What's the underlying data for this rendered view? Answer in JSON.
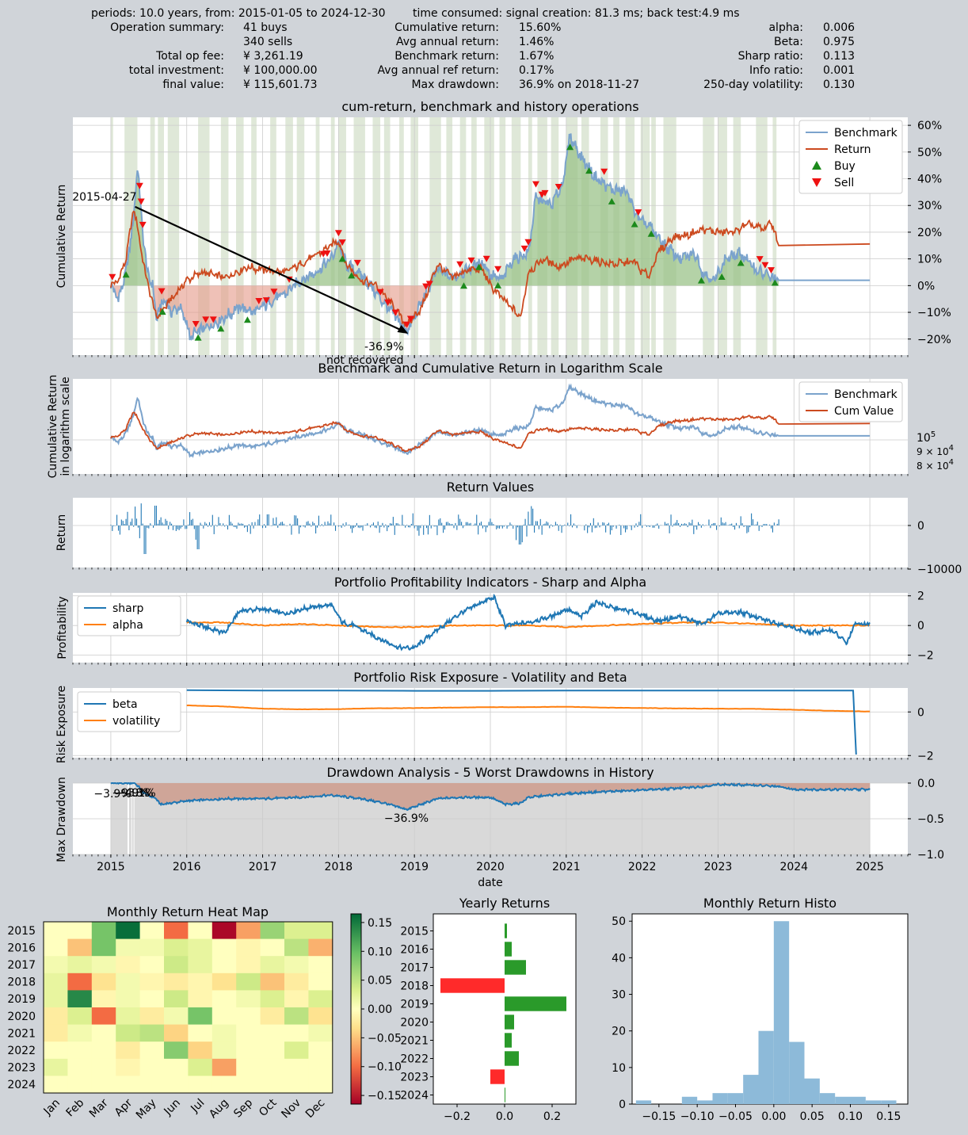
{
  "summary": {
    "header_left": "periods: 10.0 years, from: 2015-01-05 to 2024-12-30",
    "header_right": "time consumed:   signal creation: 81.3 ms;  back test:4.9 ms",
    "col1": [
      {
        "label": "Operation summary:",
        "value": "41     buys"
      },
      {
        "label": "",
        "value": "340     sells"
      },
      {
        "label": "Total op fee:",
        "value": "¥     3,261.19"
      },
      {
        "label": "total investment:",
        "value": "¥   100,000.00"
      },
      {
        "label": "final value:",
        "value": "¥   115,601.73"
      }
    ],
    "col2": [
      {
        "label": "Cumulative return:",
        "value": "15.60%"
      },
      {
        "label": "Avg annual return:",
        "value": "1.46%"
      },
      {
        "label": "Benchmark return:",
        "value": "1.67%"
      },
      {
        "label": "Avg annual ref return:",
        "value": "0.17%"
      },
      {
        "label": "Max drawdown:",
        "value": "36.9% on 2018-11-27"
      }
    ],
    "col3": [
      {
        "label": "alpha:",
        "value": "0.006"
      },
      {
        "label": "Beta:",
        "value": "0.975"
      },
      {
        "label": "Sharp ratio:",
        "value": "0.113"
      },
      {
        "label": "Info ratio:",
        "value": "0.001"
      },
      {
        "label": "250-day volatility:",
        "value": "0.130"
      }
    ]
  },
  "colors": {
    "benchmark": "#7ba3cc",
    "return": "#cc4a1f",
    "buy": "#1c8a1c",
    "sell": "#ee1111",
    "blue": "#1f77b4",
    "orange": "#ff7f0e",
    "green_fill": "#9bc38a",
    "red_fill": "#e6a090",
    "hold_band": "#dfe8d8",
    "grid": "#cccccc"
  },
  "chart_data": [
    {
      "type": "line",
      "title": "cum-return, benchmark and history operations",
      "xlabel": "",
      "ylabel": "Cumulative Return",
      "xlim": [
        2014.5,
        2025.5
      ],
      "ylim": [
        -26,
        63
      ],
      "yticks": [
        -20,
        -10,
        0,
        10,
        20,
        30,
        40,
        50,
        60
      ],
      "ytick_labels": [
        "−20%",
        "−10%",
        "0%",
        "10%",
        "20%",
        "30%",
        "40%",
        "50%",
        "60%"
      ],
      "legend": [
        "Benchmark",
        "Return",
        "Buy",
        "Sell"
      ],
      "legend_position": "top-right",
      "series": [
        {
          "name": "Benchmark",
          "x": [
            2015.0,
            2015.1,
            2015.2,
            2015.3,
            2015.35,
            2015.42,
            2015.48,
            2015.55,
            2015.6,
            2015.7,
            2015.8,
            2015.9,
            2016.0,
            2016.05,
            2016.1,
            2016.3,
            2016.5,
            2016.7,
            2016.9,
            2017.1,
            2017.3,
            2017.5,
            2017.7,
            2017.9,
            2018.0,
            2018.1,
            2018.3,
            2018.5,
            2018.7,
            2018.9,
            2019.0,
            2019.15,
            2019.3,
            2019.5,
            2019.7,
            2019.9,
            2020.0,
            2020.15,
            2020.3,
            2020.5,
            2020.6,
            2020.8,
            2020.95,
            2021.05,
            2021.2,
            2021.4,
            2021.6,
            2021.8,
            2021.95,
            2022.1,
            2022.3,
            2022.5,
            2022.7,
            2022.8,
            2022.95,
            2023.1,
            2023.3,
            2023.5,
            2023.7,
            2023.8,
            2024.0,
            2024.5,
            2025.0
          ],
          "y": [
            0,
            -5,
            5,
            25,
            45,
            20,
            5,
            0,
            -12,
            -5,
            -10,
            -8,
            -14,
            -20,
            -18,
            -15,
            -12,
            -8,
            -10,
            -6,
            -3,
            2,
            5,
            10,
            16,
            8,
            4,
            -3,
            -10,
            -17,
            -12,
            -3,
            6,
            3,
            6,
            9,
            4,
            2,
            10,
            12,
            33,
            30,
            38,
            56,
            48,
            40,
            36,
            35,
            25,
            22,
            15,
            10,
            12,
            5,
            2,
            10,
            12,
            6,
            3,
            2,
            2,
            2,
            2
          ]
        },
        {
          "name": "Return",
          "x": [
            2015.0,
            2015.1,
            2015.2,
            2015.3,
            2015.35,
            2015.45,
            2015.6,
            2015.8,
            2016.0,
            2016.2,
            2016.5,
            2016.8,
            2017.0,
            2017.3,
            2017.5,
            2017.8,
            2018.0,
            2018.1,
            2018.3,
            2018.5,
            2018.7,
            2018.9,
            2019.1,
            2019.3,
            2019.5,
            2019.7,
            2019.9,
            2020.0,
            2020.2,
            2020.4,
            2020.5,
            2020.7,
            2020.9,
            2021.1,
            2021.3,
            2021.6,
            2021.9,
            2022.0,
            2022.1,
            2022.2,
            2022.4,
            2022.6,
            2022.8,
            2023.0,
            2023.2,
            2023.4,
            2023.6,
            2023.7,
            2023.8,
            2024.0,
            2025.0
          ],
          "y": [
            0,
            2,
            10,
            29,
            22,
            5,
            -12,
            -5,
            2,
            5,
            3,
            7,
            6,
            5,
            8,
            13,
            17,
            8,
            2,
            0,
            -7,
            -15,
            -8,
            8,
            3,
            6,
            6,
            0,
            -6,
            -12,
            5,
            10,
            7,
            10,
            10,
            8,
            9,
            5,
            4,
            12,
            18,
            19,
            21,
            20,
            20,
            23,
            21,
            24,
            15,
            15,
            15.6
          ]
        }
      ],
      "max_drawdown_annotation": {
        "peak_date": "2015-04-27",
        "value": "-36.9%",
        "note": "not recovered"
      }
    },
    {
      "type": "line",
      "title": "Benchmark and Cumulative Return in Logarithm Scale",
      "ylabel": "Cumulative Return\nin logarithm scale",
      "scale": "log",
      "ytick_labels": [
        "10^5",
        "9 × 10^4",
        "8 × 10^4"
      ],
      "legend": [
        "Benchmark",
        "Cum Value"
      ],
      "legend_position": "top-right"
    },
    {
      "type": "bar",
      "title": "Return Values",
      "ylabel": "Return",
      "yticks": [
        0,
        -10000
      ],
      "ytick_labels": [
        "0",
        "−10000"
      ]
    },
    {
      "type": "line",
      "title": "Portfolio Profitability Indicators - Sharp and Alpha",
      "ylabel": "Profitability",
      "ylim": [
        -2.5,
        2.2
      ],
      "yticks": [
        -2,
        0,
        2
      ],
      "ytick_labels": [
        "−2",
        "0",
        "2"
      ],
      "legend": [
        "sharp",
        "alpha"
      ],
      "legend_position": "top-left",
      "series": [
        {
          "name": "sharp",
          "x": [
            2016.0,
            2016.3,
            2016.5,
            2016.7,
            2017.0,
            2017.3,
            2017.6,
            2017.9,
            2018.05,
            2018.2,
            2018.5,
            2018.8,
            2019.0,
            2019.3,
            2019.6,
            2019.9,
            2020.05,
            2020.2,
            2020.5,
            2020.8,
            2021.0,
            2021.2,
            2021.4,
            2021.6,
            2021.9,
            2022.2,
            2022.5,
            2022.8,
            2023.0,
            2023.3,
            2023.6,
            2023.9,
            2024.2,
            2024.5,
            2024.7,
            2024.8,
            2025.0
          ],
          "y": [
            0.3,
            -0.2,
            -0.5,
            1.0,
            1.1,
            0.8,
            1.2,
            1.4,
            0.2,
            0.0,
            -0.8,
            -1.5,
            -1.5,
            -0.3,
            0.8,
            1.6,
            1.9,
            0.0,
            0.2,
            0.6,
            1.1,
            0.6,
            1.6,
            1.2,
            0.9,
            0.3,
            0.6,
            0.1,
            0.8,
            0.9,
            0.4,
            0.0,
            -0.5,
            -0.3,
            -1.2,
            0.1,
            0.1
          ]
        },
        {
          "name": "alpha",
          "x": [
            2016.0,
            2016.5,
            2017.0,
            2017.5,
            2018.0,
            2018.5,
            2019.0,
            2019.5,
            2020.0,
            2020.5,
            2021.0,
            2021.5,
            2022.0,
            2022.5,
            2023.0,
            2023.5,
            2024.0,
            2024.5,
            2025.0
          ],
          "y": [
            0.2,
            0.2,
            0.0,
            0.1,
            0.0,
            -0.1,
            -0.1,
            0.0,
            0.0,
            0.0,
            -0.1,
            0.0,
            0.1,
            0.2,
            0.2,
            0.1,
            0.0,
            0.0,
            0.0
          ]
        }
      ]
    },
    {
      "type": "line",
      "title": "Portfolio Risk Exposure - Volatility and Beta",
      "ylabel": "Risk Exposure",
      "ylim": [
        -2.1,
        1.1
      ],
      "yticks": [
        -2,
        0
      ],
      "ytick_labels": [
        "−2",
        "0"
      ],
      "legend": [
        "beta",
        "volatility"
      ],
      "legend_position": "top-left",
      "series": [
        {
          "name": "beta",
          "x": [
            2016.0,
            2017.0,
            2018.0,
            2019.0,
            2020.0,
            2021.0,
            2022.0,
            2023.0,
            2024.0,
            2024.78,
            2024.8,
            2024.82
          ],
          "y": [
            1.0,
            0.98,
            0.98,
            0.97,
            0.97,
            0.98,
            0.98,
            0.98,
            0.98,
            0.98,
            -0.5,
            -1.95
          ]
        },
        {
          "name": "volatility",
          "x": [
            2016.0,
            2016.5,
            2017.0,
            2017.5,
            2018.0,
            2018.5,
            2019.0,
            2019.5,
            2020.0,
            2020.5,
            2021.0,
            2021.5,
            2022.0,
            2022.5,
            2023.0,
            2023.5,
            2024.0,
            2024.5,
            2025.0
          ],
          "y": [
            0.3,
            0.25,
            0.15,
            0.12,
            0.13,
            0.17,
            0.18,
            0.2,
            0.22,
            0.22,
            0.24,
            0.2,
            0.18,
            0.16,
            0.15,
            0.14,
            0.1,
            0.05,
            0.02
          ]
        }
      ]
    },
    {
      "type": "area",
      "title": "Drawdown Analysis - 5 Worst Drawdowns in History",
      "xlabel": "date",
      "ylabel": "Max Drawdown",
      "ylim": [
        -1.0,
        0.0
      ],
      "yticks": [
        0.0,
        -0.5,
        -1.0
      ],
      "ytick_labels": [
        "0.0",
        "−0.5",
        "−1.0"
      ],
      "xticks": [
        2015,
        2016,
        2017,
        2018,
        2019,
        2020,
        2021,
        2022,
        2023,
        2024,
        2025
      ],
      "xtick_labels": [
        "2015",
        "2016",
        "2017",
        "2018",
        "2019",
        "2020",
        "2021",
        "2022",
        "2023",
        "2024",
        "2025"
      ],
      "series": [
        {
          "name": "",
          "x": [
            2015.0,
            2015.2,
            2015.32,
            2015.45,
            2015.6,
            2015.65,
            2016.0,
            2016.5,
            2017.0,
            2017.5,
            2017.9,
            2018.3,
            2018.6,
            2018.9,
            2019.3,
            2019.6,
            2020.0,
            2020.2,
            2020.4,
            2020.5,
            2021.0,
            2021.5,
            2022.0,
            2022.5,
            2022.8,
            2023.0,
            2023.5,
            2023.8,
            2024.0,
            2025.0
          ],
          "y": [
            0.0,
            0.0,
            0.0,
            -0.15,
            -0.22,
            -0.3,
            -0.25,
            -0.22,
            -0.22,
            -0.2,
            -0.17,
            -0.22,
            -0.28,
            -0.37,
            -0.22,
            -0.2,
            -0.2,
            -0.3,
            -0.28,
            -0.2,
            -0.15,
            -0.12,
            -0.1,
            -0.07,
            -0.05,
            -0.02,
            -0.03,
            -0.05,
            -0.09,
            -0.09
          ]
        }
      ],
      "drawdown_labels": [
        "−3.9%",
        "−9.9%",
        "−4.8%",
        "−3.1%",
        "−36.9%"
      ]
    },
    {
      "type": "heatmap",
      "title": "Monthly Return Heat Map",
      "rows": [
        "2015",
        "2016",
        "2017",
        "2018",
        "2019",
        "2020",
        "2021",
        "2022",
        "2023",
        "2024"
      ],
      "cols": [
        "Jan",
        "Feb",
        "Mar",
        "Apr",
        "May",
        "Jun",
        "Jul",
        "Aug",
        "Sep",
        "Oct",
        "Nov",
        "Dec"
      ],
      "values": [
        [
          0.0,
          0.0,
          0.09,
          0.16,
          0.0,
          -0.1,
          0.0,
          -0.16,
          -0.07,
          0.07,
          0.03,
          0.03
        ],
        [
          0.0,
          -0.05,
          0.09,
          0.01,
          0.01,
          0.03,
          0.02,
          0.0,
          -0.01,
          0.0,
          0.05,
          -0.06
        ],
        [
          0.01,
          0.02,
          0.01,
          -0.01,
          0.0,
          0.04,
          0.02,
          0.0,
          -0.01,
          0.02,
          0.01,
          0.0
        ],
        [
          0.02,
          -0.1,
          -0.03,
          0.01,
          -0.01,
          -0.02,
          -0.01,
          -0.03,
          0.04,
          -0.05,
          -0.02,
          0.0
        ],
        [
          0.02,
          0.14,
          -0.01,
          0.01,
          0.0,
          0.04,
          -0.01,
          0.0,
          0.01,
          0.03,
          -0.01,
          0.03
        ],
        [
          -0.02,
          0.03,
          -0.1,
          0.02,
          -0.02,
          0.01,
          0.09,
          0.0,
          0.0,
          -0.02,
          0.05,
          -0.03
        ],
        [
          -0.02,
          0.01,
          0.0,
          0.04,
          0.05,
          -0.04,
          0.0,
          0.01,
          0.0,
          0.0,
          0.0,
          0.01
        ],
        [
          0.0,
          0.0,
          0.0,
          -0.02,
          0.0,
          0.08,
          -0.04,
          0.01,
          0.0,
          0.0,
          0.03,
          0.0
        ],
        [
          0.02,
          0.0,
          0.0,
          -0.01,
          0.0,
          0.0,
          0.03,
          -0.07,
          0.0,
          0.0,
          0.0,
          0.0
        ],
        [
          0.0,
          0.0,
          0.0,
          0.0,
          0.0,
          0.0,
          0.0,
          0.0,
          0.0,
          0.0,
          0.0,
          0.0
        ]
      ],
      "colorbar_ticks": [
        0.15,
        0.1,
        0.05,
        0.0,
        -0.05,
        -0.1,
        -0.15
      ],
      "colorbar_tick_labels": [
        "0.15",
        "0.10",
        "0.05",
        "0.00",
        "−0.05",
        "−0.10",
        "−0.15"
      ]
    },
    {
      "type": "bar",
      "orientation": "horizontal",
      "title": "Yearly Returns",
      "categories": [
        "2015",
        "2016",
        "2017",
        "2018",
        "2019",
        "2020",
        "2021",
        "2022",
        "2023",
        "2024"
      ],
      "values": [
        0.01,
        0.03,
        0.09,
        -0.27,
        0.26,
        0.04,
        0.03,
        0.06,
        -0.06,
        0.0
      ],
      "xlim": [
        -0.3,
        0.3
      ],
      "xticks": [
        -0.2,
        0.0,
        0.2
      ],
      "xtick_labels": [
        "−0.2",
        "0.0",
        "0.2"
      ]
    },
    {
      "type": "bar",
      "title": "Monthly Return Histo",
      "bin_edges": [
        -0.18,
        -0.16,
        -0.14,
        -0.12,
        -0.1,
        -0.08,
        -0.06,
        -0.04,
        -0.02,
        0.0,
        0.02,
        0.04,
        0.06,
        0.08,
        0.1,
        0.12,
        0.14,
        0.16
      ],
      "counts": [
        1,
        0,
        0,
        2,
        1,
        3,
        3,
        8,
        20,
        50,
        17,
        7,
        3,
        2,
        2,
        1,
        1
      ],
      "ylim": [
        0,
        52
      ],
      "xticks": [
        -0.15,
        -0.1,
        -0.05,
        0.0,
        0.05,
        0.1,
        0.15
      ],
      "xtick_labels": [
        "−0.15",
        "−0.10",
        "−0.05",
        "0.00",
        "0.05",
        "0.10",
        "0.15"
      ],
      "yticks": [
        0,
        10,
        20,
        30,
        40,
        50
      ],
      "ytick_labels": [
        "0",
        "10",
        "20",
        "30",
        "40",
        "50"
      ]
    }
  ]
}
